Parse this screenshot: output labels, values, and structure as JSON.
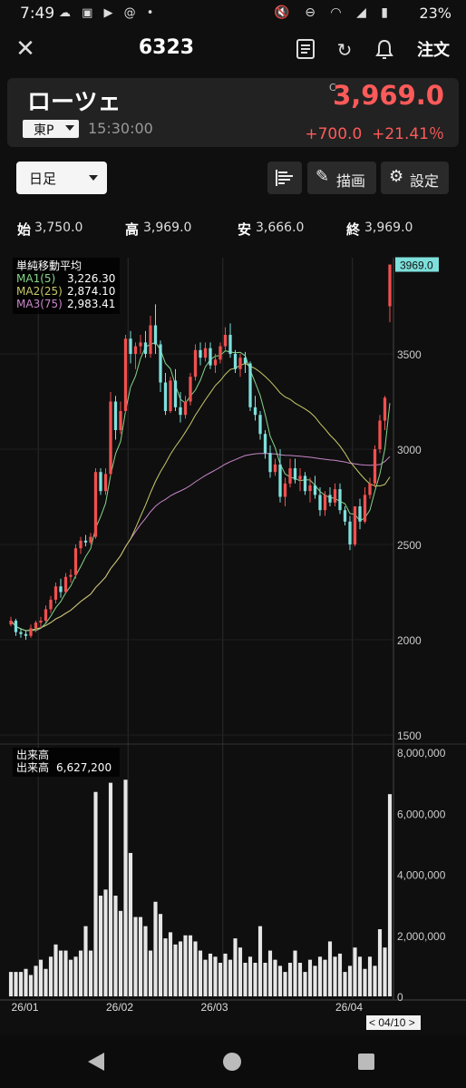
{
  "status_bar": {
    "time": "7:49",
    "battery": "23%"
  },
  "header": {
    "title": "6323",
    "order_label": "注文"
  },
  "quote": {
    "name": "ローツェ",
    "market": "東P",
    "time": "15:30:00",
    "c_mark": "C",
    "price": "3,969.0",
    "change": "+700.0",
    "change_pct": "+21.41％"
  },
  "toolbar": {
    "period": "日足",
    "draw_label": "描画",
    "settings_label": "設定"
  },
  "ohlc": {
    "open_label": "始",
    "open": "3,750.0",
    "high_label": "高",
    "high": "3,969.0",
    "low_label": "安",
    "low": "3,666.0",
    "close_label": "終",
    "close": "3,969.0"
  },
  "colors": {
    "up": "#f0504f",
    "down": "#7ee0dc",
    "ma1": "#86d58a",
    "ma2": "#c8c86a",
    "ma3": "#c886c8",
    "price_tag": "#7ee0dc"
  },
  "chart_data": {
    "type": "candlestick",
    "ma_legend": {
      "title": "単純移動平均",
      "items": [
        {
          "label": "MA1(5)",
          "value": "3,226.30"
        },
        {
          "label": "MA2(25)",
          "value": "2,874.10"
        },
        {
          "label": "MA3(75)",
          "value": "2,983.41"
        }
      ]
    },
    "price_axis": {
      "ticks": [
        "3500",
        "3000",
        "2500",
        "2000",
        "1500"
      ],
      "ylim": [
        1500,
        4000
      ],
      "tag": "3969.0"
    },
    "volume_legend": {
      "title": "出来高",
      "label": "出来高",
      "value": "6,627,200"
    },
    "volume_axis": {
      "ticks": [
        "8,000,000",
        "6,000,000",
        "4,000,000",
        "2,000,000",
        "0"
      ],
      "ylim": [
        0,
        8000000
      ]
    },
    "x_labels": [
      "26/01",
      "26/02",
      "26/03",
      "26/04"
    ],
    "date_tag": "< 04/10 >",
    "candles": [
      [
        2080,
        2120,
        2070,
        2100
      ],
      [
        2100,
        2110,
        2020,
        2040
      ],
      [
        2040,
        2060,
        2010,
        2030
      ],
      [
        2030,
        2050,
        2000,
        2020
      ],
      [
        2020,
        2080,
        2010,
        2060
      ],
      [
        2060,
        2100,
        2040,
        2090
      ],
      [
        2090,
        2120,
        2060,
        2100
      ],
      [
        2100,
        2180,
        2090,
        2160
      ],
      [
        2160,
        2230,
        2140,
        2210
      ],
      [
        2210,
        2300,
        2190,
        2280
      ],
      [
        2280,
        2320,
        2220,
        2250
      ],
      [
        2250,
        2350,
        2240,
        2330
      ],
      [
        2330,
        2370,
        2300,
        2340
      ],
      [
        2340,
        2500,
        2320,
        2480
      ],
      [
        2480,
        2540,
        2450,
        2520
      ],
      [
        2520,
        2550,
        2490,
        2510
      ],
      [
        2510,
        2560,
        2500,
        2540
      ],
      [
        2540,
        2900,
        2530,
        2880
      ],
      [
        2880,
        2900,
        2760,
        2780
      ],
      [
        2780,
        2900,
        2760,
        2870
      ],
      [
        2870,
        3300,
        2860,
        3250
      ],
      [
        3250,
        3280,
        3050,
        3100
      ],
      [
        3100,
        3250,
        3080,
        3200
      ],
      [
        3200,
        3600,
        3190,
        3580
      ],
      [
        3580,
        3620,
        3450,
        3500
      ],
      [
        3500,
        3560,
        3420,
        3540
      ],
      [
        3540,
        3600,
        3500,
        3560
      ],
      [
        3560,
        3620,
        3480,
        3500
      ],
      [
        3500,
        3700,
        3480,
        3650
      ],
      [
        3650,
        3760,
        3500,
        3550
      ],
      [
        3550,
        3570,
        3300,
        3350
      ],
      [
        3350,
        3400,
        3180,
        3200
      ],
      [
        3200,
        3380,
        3190,
        3360
      ],
      [
        3360,
        3420,
        3200,
        3220
      ],
      [
        3220,
        3300,
        3140,
        3180
      ],
      [
        3180,
        3280,
        3160,
        3250
      ],
      [
        3250,
        3400,
        3230,
        3380
      ],
      [
        3380,
        3550,
        3360,
        3520
      ],
      [
        3520,
        3560,
        3440,
        3480
      ],
      [
        3480,
        3560,
        3460,
        3530
      ],
      [
        3530,
        3560,
        3420,
        3440
      ],
      [
        3440,
        3500,
        3400,
        3470
      ],
      [
        3470,
        3560,
        3450,
        3540
      ],
      [
        3540,
        3640,
        3520,
        3600
      ],
      [
        3600,
        3660,
        3480,
        3500
      ],
      [
        3500,
        3520,
        3400,
        3420
      ],
      [
        3420,
        3500,
        3380,
        3480
      ],
      [
        3480,
        3510,
        3400,
        3450
      ],
      [
        3450,
        3460,
        3200,
        3220
      ],
      [
        3220,
        3280,
        3150,
        3180
      ],
      [
        3180,
        3200,
        3050,
        3080
      ],
      [
        3080,
        3100,
        2950,
        2980
      ],
      [
        2980,
        3020,
        2850,
        2880
      ],
      [
        2880,
        2950,
        2860,
        2920
      ],
      [
        2920,
        3000,
        2720,
        2750
      ],
      [
        2750,
        2850,
        2700,
        2820
      ],
      [
        2820,
        2950,
        2800,
        2900
      ],
      [
        2900,
        2950,
        2820,
        2840
      ],
      [
        2840,
        2900,
        2780,
        2860
      ],
      [
        2860,
        2880,
        2760,
        2780
      ],
      [
        2780,
        2850,
        2720,
        2810
      ],
      [
        2810,
        2860,
        2740,
        2760
      ],
      [
        2760,
        2800,
        2650,
        2680
      ],
      [
        2680,
        2780,
        2650,
        2760
      ],
      [
        2760,
        2800,
        2700,
        2720
      ],
      [
        2720,
        2820,
        2700,
        2790
      ],
      [
        2790,
        2820,
        2660,
        2680
      ],
      [
        2680,
        2700,
        2600,
        2620
      ],
      [
        2620,
        2650,
        2470,
        2500
      ],
      [
        2500,
        2700,
        2490,
        2700
      ],
      [
        2700,
        2740,
        2580,
        2620
      ],
      [
        2620,
        2800,
        2610,
        2760
      ],
      [
        2760,
        2850,
        2740,
        2820
      ],
      [
        2820,
        3020,
        2800,
        3000
      ],
      [
        3000,
        3180,
        2980,
        3150
      ],
      [
        3150,
        3280,
        3100,
        3270
      ],
      [
        3750,
        3969,
        3666,
        3969
      ]
    ],
    "volumes": [
      800000,
      800000,
      800000,
      900000,
      700000,
      1000000,
      1200000,
      900000,
      1300000,
      1700000,
      1500000,
      1500000,
      1200000,
      1300000,
      1500000,
      2300000,
      1500000,
      6700000,
      3300000,
      3500000,
      7000000,
      3300000,
      2800000,
      7100000,
      4700000,
      2600000,
      2600000,
      2300000,
      1500000,
      3100000,
      2700000,
      1900000,
      2100000,
      1700000,
      1800000,
      2000000,
      2000000,
      1800000,
      1500000,
      1200000,
      1400000,
      1300000,
      1100000,
      1400000,
      1200000,
      1900000,
      1600000,
      1100000,
      1300000,
      1100000,
      2300000,
      1100000,
      1500000,
      1200000,
      1000000,
      800000,
      1100000,
      1500000,
      1100000,
      800000,
      1200000,
      1000000,
      1300000,
      1200000,
      1800000,
      1300000,
      1400000,
      800000,
      1000000,
      1600000,
      1300000,
      900000,
      1300000,
      1000000,
      2200000,
      1600000,
      6627200
    ]
  }
}
